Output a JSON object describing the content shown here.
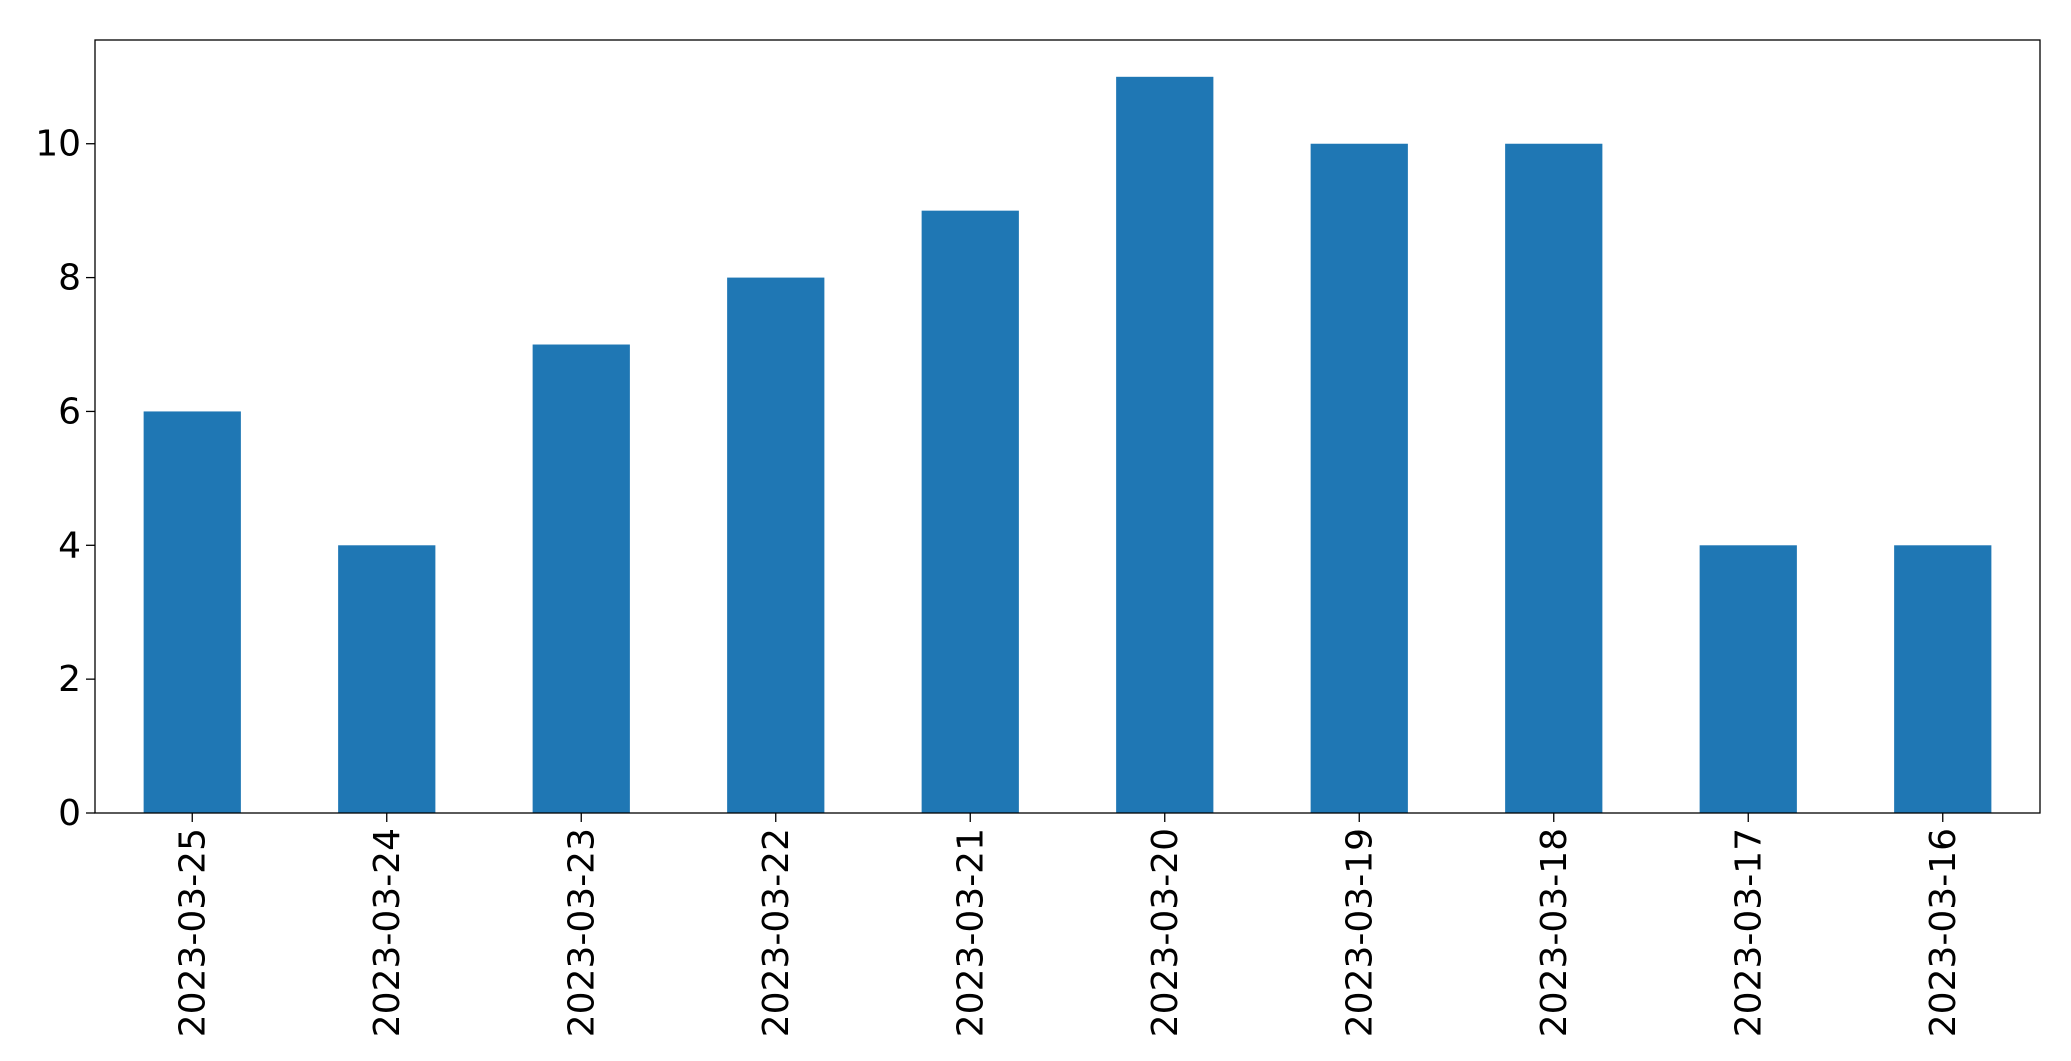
{
  "chart_data": {
    "type": "bar",
    "categories": [
      "2023-03-25",
      "2023-03-24",
      "2023-03-23",
      "2023-03-22",
      "2023-03-21",
      "2023-03-20",
      "2023-03-19",
      "2023-03-18",
      "2023-03-17",
      "2023-03-16"
    ],
    "values": [
      6,
      4,
      7,
      8,
      9,
      11,
      10,
      10,
      4,
      4
    ],
    "title": "",
    "xlabel": "",
    "ylabel": "",
    "ylim": [
      0,
      11.55
    ],
    "yticks": [
      0,
      2,
      4,
      6,
      8,
      10
    ],
    "grid": false,
    "legend": "none",
    "bar_color": "#1f77b4",
    "x_tick_rotation": "vertical"
  }
}
